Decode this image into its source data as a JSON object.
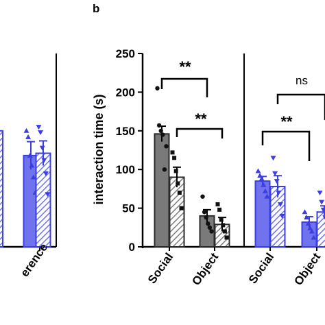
{
  "panel_label": "b",
  "colors": {
    "gray": "#7a7a7a",
    "blue": "#3b3ee0",
    "blue_light": "#6f73ee",
    "black": "#000000"
  },
  "chart_data": [
    {
      "type": "bar",
      "panel": "a (partial)",
      "categories": [
        "…erence"
      ],
      "visible_category_fragment": "erence",
      "series": [
        {
          "name": "",
          "pattern": "solid",
          "values": [
            118
          ],
          "error": [
            18
          ],
          "points": [
            150,
            142,
            118,
            105,
            90,
            70
          ]
        },
        {
          "name": "",
          "pattern": "hatched",
          "values": [
            121
          ],
          "error": [
            16
          ],
          "points": [
            155,
            148,
            128,
            112,
            95,
            68
          ]
        }
      ],
      "ylim": [
        0,
        250
      ]
    },
    {
      "type": "bar",
      "panel": "b",
      "ylabel": "interaction time (s)",
      "ylim": [
        0,
        250
      ],
      "yticks": [
        0,
        50,
        100,
        150,
        200,
        250
      ],
      "groups": [
        {
          "color": "gray",
          "categories": [
            "Social",
            "Object"
          ],
          "series": [
            {
              "name": "",
              "pattern": "solid",
              "values": [
                146,
                40
              ],
              "error": [
                10,
                8
              ],
              "points": [
                [
                  205,
                  157,
                  150,
                  145,
                  100,
                  130
                ],
                [
                  65,
                  45,
                  38,
                  30,
                  25,
                  20
                ]
              ]
            },
            {
              "name": "",
              "pattern": "hatched",
              "values": [
                90,
                29
              ],
              "error": [
                13,
                9
              ],
              "points": [
                [
                  122,
                  115,
                  98,
                  82,
                  70,
                  50
                ],
                [
                  55,
                  48,
                  35,
                  28,
                  20,
                  12
                ]
              ]
            }
          ]
        },
        {
          "color": "blue",
          "categories": [
            "Social",
            "Object"
          ],
          "series": [
            {
              "name": "",
              "pattern": "solid",
              "values": [
                85,
                32
              ],
              "error": [
                6,
                7
              ],
              "points": [
                [
                  98,
                  92,
                  88,
                  80,
                  72,
                  65
                ],
                [
                  45,
                  38,
                  30,
                  24,
                  20,
                  12
                ]
              ]
            },
            {
              "name": "",
              "pattern": "hatched",
              "values": [
                78,
                45
              ],
              "error": [
                14,
                8
              ],
              "points": [
                [
                  115,
                  95,
                  85,
                  70,
                  55,
                  40
                ],
                [
                  70,
                  58,
                  48,
                  38,
                  28,
                  20
                ]
              ]
            }
          ]
        }
      ],
      "significance": [
        {
          "label": "**",
          "between": "gray Social solid – gray Object solid"
        },
        {
          "label": "**",
          "between": "gray Social hatched – gray Object hatched"
        },
        {
          "label": "**",
          "between": "blue Social solid – blue Object solid"
        },
        {
          "label": "ns",
          "between": "blue Social hatched – blue Object hatched"
        }
      ]
    }
  ]
}
